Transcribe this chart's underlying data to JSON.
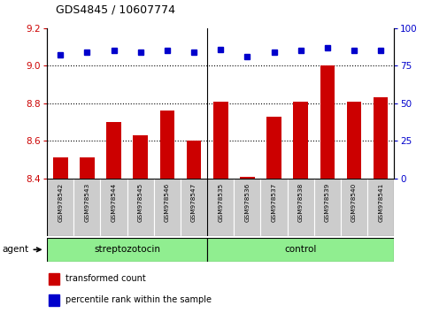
{
  "title": "GDS4845 / 10607774",
  "samples": [
    "GSM978542",
    "GSM978543",
    "GSM978544",
    "GSM978545",
    "GSM978546",
    "GSM978547",
    "GSM978535",
    "GSM978536",
    "GSM978537",
    "GSM978538",
    "GSM978539",
    "GSM978540",
    "GSM978541"
  ],
  "red_values": [
    8.51,
    8.51,
    8.7,
    8.63,
    8.76,
    8.6,
    8.81,
    8.41,
    8.73,
    8.81,
    9.0,
    8.81,
    8.83
  ],
  "blue_values": [
    82,
    84,
    85,
    84,
    85,
    84,
    86,
    81,
    84,
    85,
    87,
    85,
    85
  ],
  "ylim_left": [
    8.4,
    9.2
  ],
  "ylim_right": [
    0,
    100
  ],
  "yticks_left": [
    8.4,
    8.6,
    8.8,
    9.0,
    9.2
  ],
  "yticks_right": [
    0,
    25,
    50,
    75,
    100
  ],
  "strep_indices": [
    0,
    1,
    2,
    3,
    4,
    5
  ],
  "ctrl_indices": [
    6,
    7,
    8,
    9,
    10,
    11,
    12
  ],
  "strep_label": "streptozotocin",
  "ctrl_label": "control",
  "group_color": "#90EE90",
  "bar_color": "#CC0000",
  "dot_color": "#0000CC",
  "left_tick_color": "#CC0000",
  "right_tick_color": "#0000CC",
  "agent_label": "agent",
  "legend_bar_label": "transformed count",
  "legend_dot_label": "percentile rank within the sample",
  "separator_index": 6,
  "bar_bottom": 8.4
}
